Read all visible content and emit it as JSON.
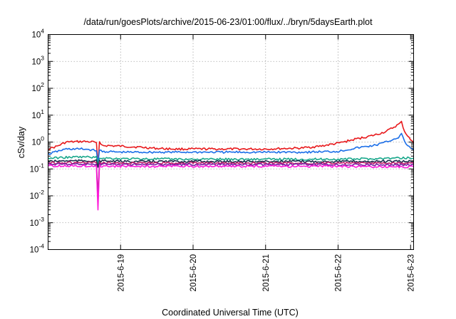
{
  "chart_data": {
    "type": "line",
    "title": "/data/run/goesPlots/archive/2015-06-23/01:00/flux/../bryn/5daysEarth.plot",
    "xlabel": "Coordinated Universal Time (UTC)",
    "ylabel": "cSv/day",
    "yscale": "log",
    "ylim": [
      0.0001,
      10000
    ],
    "xlim": [
      "2015-06-18T00:00",
      "2015-06-23T01:00"
    ],
    "grid": true,
    "y_ticks": [
      {
        "value": 0.0001,
        "base": "10",
        "exp": "-4"
      },
      {
        "value": 0.001,
        "base": "10",
        "exp": "-3"
      },
      {
        "value": 0.01,
        "base": "10",
        "exp": "-2"
      },
      {
        "value": 0.1,
        "base": "10",
        "exp": "-1"
      },
      {
        "value": 1,
        "base": "10",
        "exp": "0"
      },
      {
        "value": 10,
        "base": "10",
        "exp": "1"
      },
      {
        "value": 100,
        "base": "10",
        "exp": "2"
      },
      {
        "value": 1000,
        "base": "10",
        "exp": "3"
      },
      {
        "value": 10000,
        "base": "10",
        "exp": "4"
      }
    ],
    "x_ticks": [
      {
        "date": "2015-06-19T00:00",
        "label": "2015-6-19"
      },
      {
        "date": "2015-06-20T00:00",
        "label": "2015-6-20"
      },
      {
        "date": "2015-06-21T00:00",
        "label": "2015-6-21"
      },
      {
        "date": "2015-06-22T00:00",
        "label": "2015-6-22"
      },
      {
        "date": "2015-06-23T00:00",
        "label": "2015-6-23"
      }
    ],
    "series": [
      {
        "color": "#e8191c",
        "x": [
          "2015-06-18T00:00",
          "2015-06-18T03:00",
          "2015-06-18T06:00",
          "2015-06-18T12:00",
          "2015-06-18T15:00",
          "2015-06-18T16:00",
          "2015-06-18T16:30",
          "2015-06-18T17:00",
          "2015-06-18T17:30",
          "2015-06-18T18:00",
          "2015-06-19T00:00",
          "2015-06-19T06:00",
          "2015-06-19T12:00",
          "2015-06-19T18:00",
          "2015-06-20T00:00",
          "2015-06-20T12:00",
          "2015-06-21T00:00",
          "2015-06-21T12:00",
          "2015-06-21T18:00",
          "2015-06-22T00:00",
          "2015-06-22T06:00",
          "2015-06-22T12:00",
          "2015-06-22T16:00",
          "2015-06-22T20:00",
          "2015-06-22T21:00",
          "2015-06-22T22:00",
          "2015-06-23T00:00",
          "2015-06-23T01:00"
        ],
        "y": [
          0.55,
          0.7,
          1.0,
          1.05,
          1.0,
          0.95,
          0.15,
          0.95,
          0.9,
          0.75,
          0.7,
          0.65,
          0.58,
          0.55,
          0.55,
          0.55,
          0.55,
          0.6,
          0.7,
          0.9,
          1.3,
          1.8,
          2.5,
          4.5,
          5.5,
          2.5,
          1.2,
          0.9
        ]
      },
      {
        "color": "#1c6fe8",
        "x": [
          "2015-06-18T00:00",
          "2015-06-18T03:00",
          "2015-06-18T06:00",
          "2015-06-18T12:00",
          "2015-06-18T15:00",
          "2015-06-18T16:00",
          "2015-06-18T16:30",
          "2015-06-18T17:00",
          "2015-06-18T18:00",
          "2015-06-19T00:00",
          "2015-06-19T12:00",
          "2015-06-20T00:00",
          "2015-06-20T12:00",
          "2015-06-21T00:00",
          "2015-06-21T12:00",
          "2015-06-22T00:00",
          "2015-06-22T06:00",
          "2015-06-22T12:00",
          "2015-06-22T16:00",
          "2015-06-22T20:00",
          "2015-06-22T21:00",
          "2015-06-22T22:00",
          "2015-06-23T00:00",
          "2015-06-23T01:00"
        ],
        "y": [
          0.35,
          0.45,
          0.55,
          0.55,
          0.5,
          0.5,
          0.15,
          0.5,
          0.45,
          0.42,
          0.42,
          0.42,
          0.42,
          0.42,
          0.42,
          0.45,
          0.6,
          0.75,
          1.0,
          1.5,
          2.0,
          1.0,
          0.6,
          0.5
        ]
      },
      {
        "color": "#1aa88c",
        "x": [
          "2015-06-18T00:00",
          "2015-06-18T06:00",
          "2015-06-18T12:00",
          "2015-06-18T16:00",
          "2015-06-18T16:30",
          "2015-06-18T17:00",
          "2015-06-19T00:00",
          "2015-06-20T00:00",
          "2015-06-21T00:00",
          "2015-06-22T00:00",
          "2015-06-22T12:00",
          "2015-06-23T00:00",
          "2015-06-23T01:00"
        ],
        "y": [
          0.25,
          0.27,
          0.28,
          0.27,
          0.15,
          0.26,
          0.24,
          0.23,
          0.23,
          0.23,
          0.24,
          0.26,
          0.25
        ]
      },
      {
        "color": "#1b2a4a",
        "x": [
          "2015-06-18T00:00",
          "2015-06-18T06:00",
          "2015-06-18T12:00",
          "2015-06-18T16:00",
          "2015-06-18T16:30",
          "2015-06-18T17:00",
          "2015-06-19T00:00",
          "2015-06-20T00:00",
          "2015-06-21T00:00",
          "2015-06-22T00:00",
          "2015-06-23T00:00",
          "2015-06-23T01:00"
        ],
        "y": [
          0.19,
          0.2,
          0.2,
          0.2,
          0.12,
          0.2,
          0.19,
          0.19,
          0.19,
          0.19,
          0.19,
          0.19
        ]
      },
      {
        "color": "#c0206c",
        "x": [
          "2015-06-18T00:00",
          "2015-06-18T06:00",
          "2015-06-18T12:00",
          "2015-06-18T16:00",
          "2015-06-18T16:30",
          "2015-06-18T17:00",
          "2015-06-19T00:00",
          "2015-06-20T00:00",
          "2015-06-21T00:00",
          "2015-06-22T00:00",
          "2015-06-23T00:00",
          "2015-06-23T01:00"
        ],
        "y": [
          0.17,
          0.17,
          0.17,
          0.17,
          0.01,
          0.17,
          0.165,
          0.165,
          0.165,
          0.165,
          0.16,
          0.16
        ]
      },
      {
        "color": "#7b1fa2",
        "x": [
          "2015-06-18T00:00",
          "2015-06-18T06:00",
          "2015-06-18T12:00",
          "2015-06-18T16:00",
          "2015-06-18T16:30",
          "2015-06-18T17:00",
          "2015-06-19T00:00",
          "2015-06-20T00:00",
          "2015-06-21T00:00",
          "2015-06-22T00:00",
          "2015-06-23T00:00",
          "2015-06-23T01:00"
        ],
        "y": [
          0.15,
          0.15,
          0.15,
          0.15,
          0.005,
          0.15,
          0.145,
          0.145,
          0.145,
          0.145,
          0.14,
          0.14
        ]
      },
      {
        "color": "#ff1ad9",
        "x": [
          "2015-06-18T00:00",
          "2015-06-18T06:00",
          "2015-06-18T12:00",
          "2015-06-18T16:00",
          "2015-06-18T16:30",
          "2015-06-18T17:00",
          "2015-06-19T00:00",
          "2015-06-20T00:00",
          "2015-06-21T00:00",
          "2015-06-22T00:00",
          "2015-06-23T00:00",
          "2015-06-23T01:00"
        ],
        "y": [
          0.13,
          0.13,
          0.13,
          0.13,
          0.003,
          0.13,
          0.125,
          0.125,
          0.125,
          0.125,
          0.12,
          0.12
        ]
      }
    ]
  }
}
